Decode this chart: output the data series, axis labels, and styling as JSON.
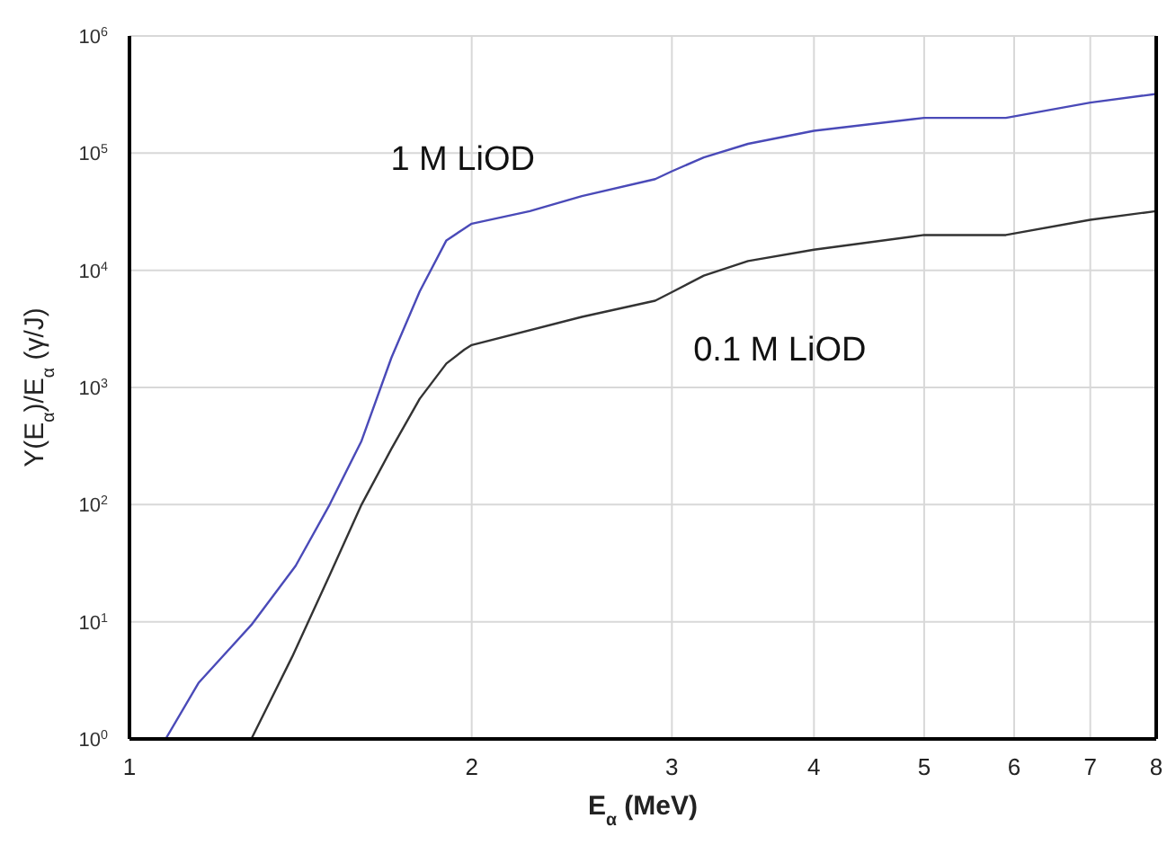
{
  "chart_data": {
    "type": "line",
    "xlabel": "E$_{α}$ (MeV)",
    "ylabel": "Y(E$_{α}$)/E$_{α}$ (γ/J)",
    "log": "xy",
    "grid": true,
    "marker": "none",
    "line_style": "solid",
    "xlim": [
      1,
      8
    ],
    "xticks": [
      1,
      2,
      3,
      4,
      5,
      6,
      7,
      8
    ],
    "ylim": [
      1,
      1000000
    ],
    "yticks": [
      {
        "value": 1,
        "label": "10$^{0}$"
      },
      {
        "value": 10,
        "label": "10$^{1}$"
      },
      {
        "value": 100,
        "label": "10$^{2}$"
      },
      {
        "value": 1000,
        "label": "10$^{3}$"
      },
      {
        "value": 10000,
        "label": "10$^{4}$"
      },
      {
        "value": 100000,
        "label": "10$^{5}$"
      },
      {
        "value": 1000000,
        "label": "10$^{6}$"
      }
    ],
    "series": [
      {
        "name": "1 M LiOD",
        "color": "#4a4ab8",
        "x": [
          1.076,
          1.15,
          1.28,
          1.4,
          1.5,
          1.6,
          1.7,
          1.8,
          1.9,
          2,
          2.25,
          2.5,
          2.9,
          3,
          3.2,
          3.5,
          4,
          5,
          5.9,
          7,
          8
        ],
        "values": [
          1,
          3,
          9.4,
          30,
          100,
          350,
          1800,
          6600,
          18000,
          25000,
          32000,
          43000,
          60000,
          70000,
          92000,
          120000,
          155000,
          200000,
          200000,
          270000,
          320000
        ]
      },
      {
        "name": "0.1 M LiOD",
        "color": "#333333",
        "x": [
          1.28,
          1.39,
          1.5,
          1.6,
          1.7,
          1.8,
          1.9,
          1.97,
          2,
          2.5,
          2.9,
          3,
          3.2,
          3.5,
          4,
          5,
          5.9,
          7,
          8
        ],
        "values": [
          1,
          5,
          25,
          100,
          300,
          800,
          1600,
          2100,
          2300,
          4000,
          5500,
          6500,
          9000,
          12000,
          15000,
          20000,
          20000,
          27000,
          32000
        ]
      }
    ]
  }
}
